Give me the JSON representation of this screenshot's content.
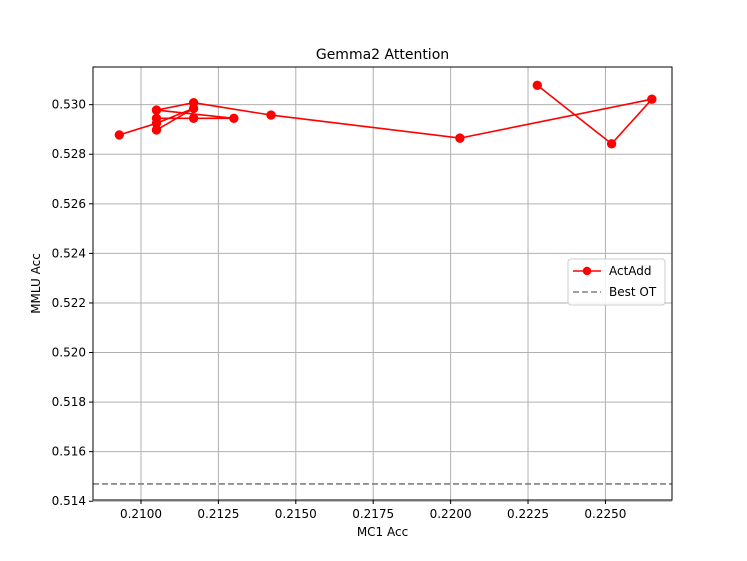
{
  "chart_data": {
    "type": "line",
    "title": "Gemma2 Attention",
    "xlabel": "MC1 Acc",
    "ylabel": "MMLU Acc",
    "xlim": [
      0.20845,
      0.22715
    ],
    "ylim": [
      0.51405,
      0.53152
    ],
    "xticks": [
      0.21,
      0.2125,
      0.215,
      0.2175,
      0.22,
      0.2225,
      0.225
    ],
    "xtick_labels": [
      "0.2100",
      "0.2125",
      "0.2150",
      "0.2175",
      "0.2200",
      "0.2225",
      "0.2250"
    ],
    "yticks": [
      0.514,
      0.516,
      0.518,
      0.52,
      0.522,
      0.524,
      0.526,
      0.528,
      0.53
    ],
    "ytick_labels": [
      "0.514",
      "0.516",
      "0.518",
      "0.520",
      "0.522",
      "0.524",
      "0.526",
      "0.528",
      "0.530"
    ],
    "grid": true,
    "legend_position": "center-right",
    "series": [
      {
        "name": "ActAdd",
        "color": "#ff0000",
        "marker": "circle",
        "x": [
          0.2093,
          0.2105,
          0.2117,
          0.2105,
          0.2105,
          0.2117,
          0.213,
          0.2105,
          0.2117,
          0.2142,
          0.2203,
          0.2265,
          0.2252,
          0.2228
        ],
        "y": [
          0.52878,
          0.52925,
          0.52985,
          0.52898,
          0.52945,
          0.52945,
          0.52945,
          0.52978,
          0.53008,
          0.52958,
          0.52865,
          0.53022,
          0.52842,
          0.53078
        ]
      }
    ],
    "reference_lines": [
      {
        "name": "Best OT",
        "orientation": "horizontal",
        "y": 0.5147,
        "color": "#808080",
        "style": "dashed"
      }
    ]
  }
}
